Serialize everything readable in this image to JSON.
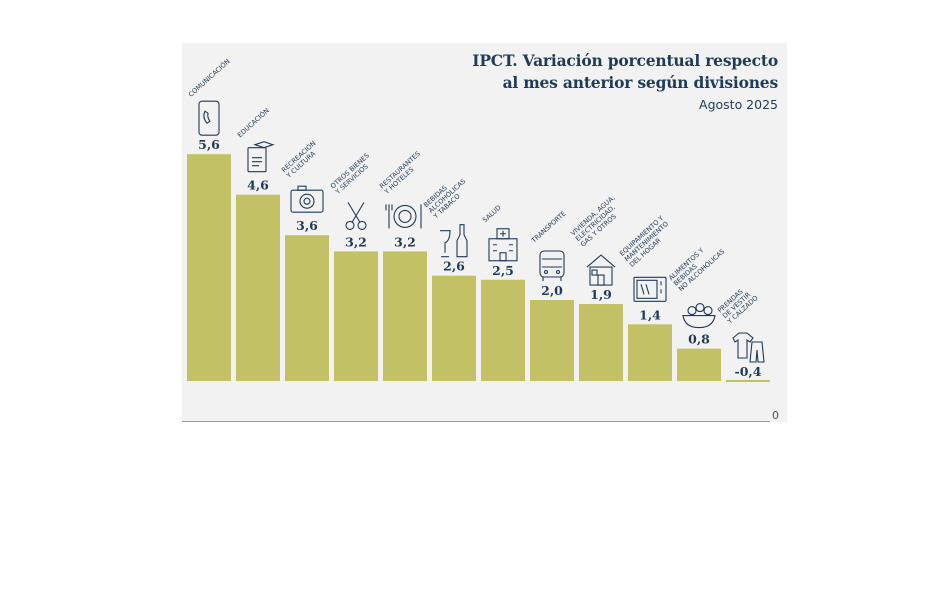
{
  "title_line1": "IPCT. Variación porcentual respecto",
  "title_line2": "al mes anterior según divisiones",
  "subtitle": "Agosto 2025",
  "zero_tick": "0",
  "colors": {
    "bar": "#c3c165",
    "panel": "#f2f2f2",
    "text": "#1f3a5a"
  },
  "chart_data": {
    "type": "bar",
    "title": "IPCT. Variación porcentual respecto al mes anterior según divisiones",
    "subtitle": "Agosto 2025",
    "xlabel": "",
    "ylabel": "",
    "ylim": [
      -0.4,
      5.6
    ],
    "grid": false,
    "categories": [
      {
        "lines": [
          "COMUNICACIÓN"
        ],
        "icon": "phone-icon"
      },
      {
        "lines": [
          "EDUCACIÓN"
        ],
        "icon": "diploma-icon"
      },
      {
        "lines": [
          "RECREACIÓN",
          "Y CULTURA"
        ],
        "icon": "camera-icon"
      },
      {
        "lines": [
          "OTROS BIENES",
          "Y SERVICIOS"
        ],
        "icon": "scissors-icon"
      },
      {
        "lines": [
          "RESTAURANTES",
          "Y HOTELES"
        ],
        "icon": "plate-cutlery-icon"
      },
      {
        "lines": [
          "BEBIDAS",
          "ALCOHÓLICAS",
          "Y TABACO"
        ],
        "icon": "bottle-glass-icon"
      },
      {
        "lines": [
          "SALUD"
        ],
        "icon": "hospital-icon"
      },
      {
        "lines": [
          "TRANSPORTE"
        ],
        "icon": "bus-icon"
      },
      {
        "lines": [
          "VIVIENDA, AGUA,",
          "ELECTRICIDAD,",
          "GAS Y OTROS"
        ],
        "icon": "house-icon"
      },
      {
        "lines": [
          "EQUIPAMIENTO Y",
          "MANTENIMIENTO",
          "DEL HOGAR"
        ],
        "icon": "microwave-icon"
      },
      {
        "lines": [
          "ALIMENTOS Y",
          "BEBIDAS",
          "NO ALCOHÓLICAS"
        ],
        "icon": "food-bowl-icon"
      },
      {
        "lines": [
          "PRENDAS",
          "DE VESTIR",
          "Y CALZADO"
        ],
        "icon": "clothes-icon"
      }
    ],
    "values": [
      5.6,
      4.6,
      3.6,
      3.2,
      3.2,
      2.6,
      2.5,
      2.0,
      1.9,
      1.4,
      0.8,
      -0.4
    ],
    "value_labels": [
      "5,6",
      "4,6",
      "3,6",
      "3,2",
      "3,2",
      "2,6",
      "2,5",
      "2,0",
      "1,9",
      "1,4",
      "0,8",
      "-0,4"
    ]
  }
}
